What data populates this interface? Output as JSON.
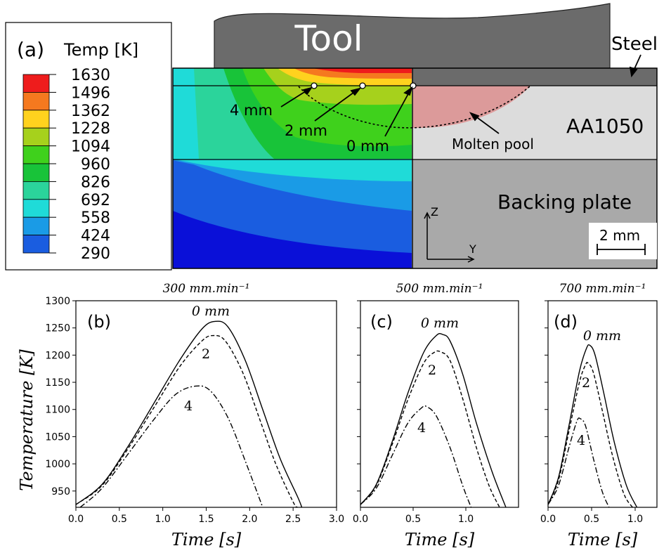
{
  "chart_data": [
    {
      "type": "contour",
      "panel_label": "(a)",
      "legend": {
        "title": "Temp [K]",
        "levels": [
          1630,
          1496,
          1362,
          1228,
          1094,
          960,
          826,
          692,
          558,
          424,
          290
        ],
        "colors": [
          "#ee1c1c",
          "#f5791f",
          "#ffd21e",
          "#a6d11c",
          "#3fd11c",
          "#18c339",
          "#2bd49b",
          "#1fdbd8",
          "#1a9be6",
          "#1a5de0",
          "#0a10d8"
        ]
      },
      "annotations": {
        "tool": "Tool",
        "steel": "Steel",
        "aa": "AA1050",
        "backing": "Backing plate",
        "molten": "Molten pool",
        "probe_4": "4 mm",
        "probe_2": "2 mm",
        "probe_0": "0 mm",
        "scale_bar": "2 mm",
        "axis_z": "Z",
        "axis_y": "Y"
      }
    },
    {
      "type": "line",
      "panel_label": "(b)",
      "title": "300 mm.min⁻¹",
      "xlabel": "Time [s]",
      "ylabel": "Temperature [K]",
      "xlim": [
        0,
        3.0
      ],
      "ylim": [
        920,
        1300
      ],
      "xticks": [
        "0.0",
        "0.5",
        "1.0",
        "1.5",
        "2.0",
        "2.5",
        "3.0"
      ],
      "xtick_values": [
        0,
        0.5,
        1.0,
        1.5,
        2.0,
        2.5,
        3.0
      ],
      "yticks": [
        "1300",
        "1250",
        "1200",
        "1150",
        "1100",
        "1050",
        "1000",
        "950"
      ],
      "ytick_values": [
        1300,
        1250,
        1200,
        1150,
        1100,
        1050,
        1000,
        950
      ],
      "series": [
        {
          "name": "0 mm",
          "style": "solid",
          "x": [
            0.0,
            0.3,
            0.6,
            0.9,
            1.2,
            1.45,
            1.6,
            1.75,
            1.95,
            2.15,
            2.35,
            2.55,
            2.6
          ],
          "y": [
            925,
            962,
            1032,
            1112,
            1192,
            1248,
            1262,
            1252,
            1190,
            1100,
            1010,
            940,
            920
          ]
        },
        {
          "name": "2",
          "style": "dashed",
          "x": [
            0.0,
            0.3,
            0.6,
            0.9,
            1.2,
            1.45,
            1.58,
            1.72,
            1.92,
            2.12,
            2.3,
            2.5,
            2.55
          ],
          "y": [
            925,
            960,
            1028,
            1104,
            1180,
            1226,
            1236,
            1226,
            1168,
            1080,
            1000,
            930,
            920
          ]
        },
        {
          "name": "4",
          "style": "dashdot",
          "x": [
            0.05,
            0.3,
            0.6,
            0.9,
            1.15,
            1.38,
            1.55,
            1.75,
            1.95,
            2.15
          ],
          "y": [
            920,
            955,
            1018,
            1082,
            1128,
            1143,
            1134,
            1085,
            1005,
            920
          ]
        }
      ],
      "curve_labels": [
        "0 mm",
        "2",
        "4"
      ]
    },
    {
      "type": "line",
      "panel_label": "(c)",
      "title": "500 mm.min⁻¹",
      "xlabel": "Time [s]",
      "xlim": [
        0,
        1.5
      ],
      "ylim": [
        920,
        1300
      ],
      "xticks": [
        "0.0",
        "0.5",
        "1.0"
      ],
      "xtick_values": [
        0,
        0.5,
        1.0
      ],
      "series": [
        {
          "name": "0 mm",
          "style": "solid",
          "x": [
            0.0,
            0.15,
            0.3,
            0.45,
            0.6,
            0.72,
            0.78,
            0.85,
            0.97,
            1.1,
            1.25,
            1.38
          ],
          "y": [
            925,
            962,
            1040,
            1130,
            1205,
            1236,
            1238,
            1226,
            1165,
            1075,
            985,
            920
          ]
        },
        {
          "name": "2",
          "style": "dashed",
          "x": [
            0.0,
            0.15,
            0.3,
            0.45,
            0.6,
            0.7,
            0.76,
            0.85,
            0.97,
            1.1,
            1.22,
            1.32
          ],
          "y": [
            925,
            960,
            1035,
            1118,
            1185,
            1205,
            1206,
            1190,
            1120,
            1030,
            960,
            920
          ]
        },
        {
          "name": "4",
          "style": "dashdot",
          "x": [
            0.0,
            0.15,
            0.3,
            0.45,
            0.58,
            0.63,
            0.72,
            0.85,
            0.97,
            1.05
          ],
          "y": [
            925,
            955,
            1015,
            1075,
            1103,
            1105,
            1088,
            1030,
            960,
            920
          ]
        }
      ],
      "curve_labels": [
        "0 mm",
        "2",
        "4"
      ]
    },
    {
      "type": "line",
      "panel_label": "(d)",
      "title": "700 mm.min⁻¹",
      "xlabel": "Time [s]",
      "xlim": [
        0,
        1.25
      ],
      "ylim": [
        920,
        1300
      ],
      "xticks": [
        "0.0",
        "0.5",
        "1.0"
      ],
      "xtick_values": [
        0,
        0.5,
        1.0
      ],
      "series": [
        {
          "name": "0 mm",
          "style": "solid",
          "x": [
            0.0,
            0.12,
            0.24,
            0.36,
            0.44,
            0.48,
            0.54,
            0.64,
            0.76,
            0.9,
            1.02
          ],
          "y": [
            925,
            975,
            1070,
            1170,
            1212,
            1218,
            1200,
            1130,
            1040,
            960,
            920
          ]
        },
        {
          "name": "2",
          "style": "dashed",
          "x": [
            0.0,
            0.12,
            0.24,
            0.36,
            0.43,
            0.46,
            0.52,
            0.62,
            0.74,
            0.87,
            0.97
          ],
          "y": [
            925,
            970,
            1060,
            1150,
            1182,
            1185,
            1168,
            1100,
            1015,
            945,
            920
          ]
        },
        {
          "name": "4",
          "style": "dashdot",
          "x": [
            0.0,
            0.12,
            0.24,
            0.33,
            0.37,
            0.43,
            0.52,
            0.62,
            0.7
          ],
          "y": [
            925,
            960,
            1030,
            1078,
            1083,
            1070,
            1010,
            950,
            920
          ]
        }
      ],
      "curve_labels": [
        "0 mm",
        "2",
        "4"
      ]
    }
  ]
}
